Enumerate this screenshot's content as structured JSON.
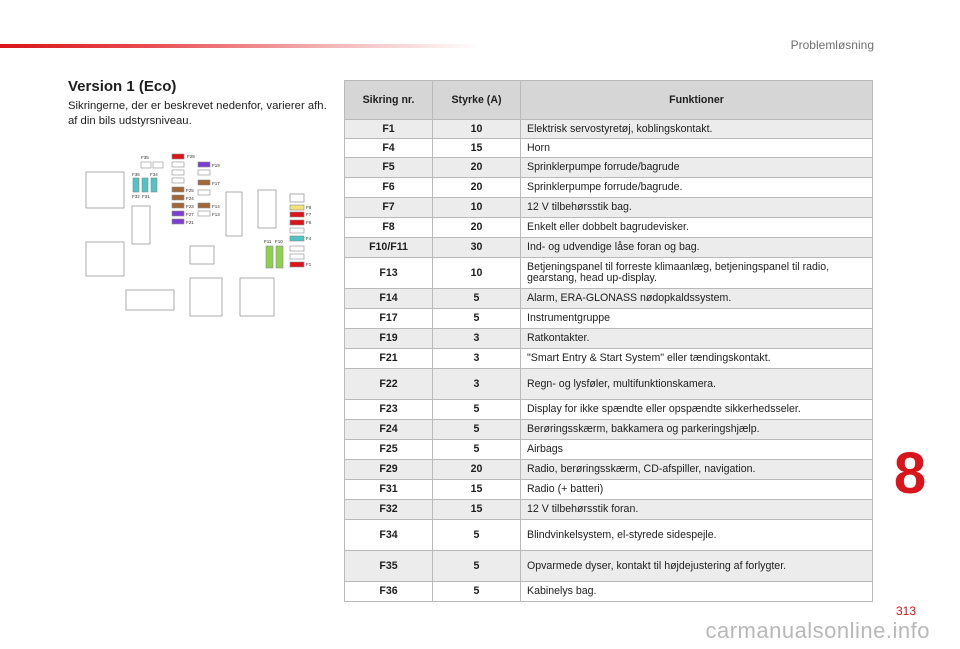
{
  "header": {
    "section": "Problemløsning"
  },
  "left": {
    "heading": "Version 1 (Eco)",
    "intro": "Sikringerne, der er beskrevet nedenfor, varierer afh. af din bils udstyrsniveau."
  },
  "diagram": {
    "labels": [
      "F35",
      "F29",
      "F19",
      "F36",
      "F34",
      "F17",
      "F32",
      "F31",
      "F25",
      "F24",
      "F14",
      "F23",
      "F13",
      "F27",
      "F21",
      "F8",
      "F7",
      "F6",
      "F4",
      "F1",
      "F11",
      "F10"
    ]
  },
  "table": {
    "headers": {
      "fuse": "Sikring nr.",
      "strength": "Styrke (A)",
      "functions": "Funktioner"
    },
    "rows": [
      {
        "fuse": "F1",
        "amp": "10",
        "func": "Elektrisk servostyretøj, koblingskontakt."
      },
      {
        "fuse": "F4",
        "amp": "15",
        "func": "Horn"
      },
      {
        "fuse": "F5",
        "amp": "20",
        "func": "Sprinklerpumpe forrude/bagrude"
      },
      {
        "fuse": "F6",
        "amp": "20",
        "func": "Sprinklerpumpe forrude/bagrude."
      },
      {
        "fuse": "F7",
        "amp": "10",
        "func": "12 V tilbehørsstik bag."
      },
      {
        "fuse": "F8",
        "amp": "20",
        "func": "Enkelt eller dobbelt bagrudevisker."
      },
      {
        "fuse": "F10/F11",
        "amp": "30",
        "func": "Ind- og udvendige låse foran og bag."
      },
      {
        "fuse": "F13",
        "amp": "10",
        "func": "Betjeningspanel til forreste klimaanlæg, betjeningspanel til radio, gearstang, head up-display."
      },
      {
        "fuse": "F14",
        "amp": "5",
        "func": "Alarm, ERA-GLONASS nødopkaldssystem."
      },
      {
        "fuse": "F17",
        "amp": "5",
        "func": "Instrumentgruppe"
      },
      {
        "fuse": "F19",
        "amp": "3",
        "func": "Ratkontakter."
      },
      {
        "fuse": "F21",
        "amp": "3",
        "func": "\"Smart Entry & Start System\" eller tændingskontakt."
      },
      {
        "fuse": "F22",
        "amp": "3",
        "func": "Regn- og lysføler, multifunktionskamera."
      },
      {
        "fuse": "F23",
        "amp": "5",
        "func": "Display for ikke spændte eller opspændte sikkerhedsseler."
      },
      {
        "fuse": "F24",
        "amp": "5",
        "func": "Berøringsskærm, bakkamera og parkeringshjælp."
      },
      {
        "fuse": "F25",
        "amp": "5",
        "func": "Airbags"
      },
      {
        "fuse": "F29",
        "amp": "20",
        "func": "Radio, berøringsskærm, CD-afspiller, navigation."
      },
      {
        "fuse": "F31",
        "amp": "15",
        "func": "Radio (+ batteri)"
      },
      {
        "fuse": "F32",
        "amp": "15",
        "func": "12 V tilbehørsstik foran."
      },
      {
        "fuse": "F34",
        "amp": "5",
        "func": "Blindvinkelsystem, el-styrede sidespejle."
      },
      {
        "fuse": "F35",
        "amp": "5",
        "func": "Opvarmede dyser, kontakt til højdejustering af forlygter."
      },
      {
        "fuse": "F36",
        "amp": "5",
        "func": "Kabinelys bag."
      }
    ]
  },
  "chapter": "8",
  "page": "313",
  "watermark": "carmanualsonline.info",
  "colors": {
    "accent": "#d9141a",
    "header_bg": "#d6d6d6",
    "row_alt": "#ececec"
  }
}
